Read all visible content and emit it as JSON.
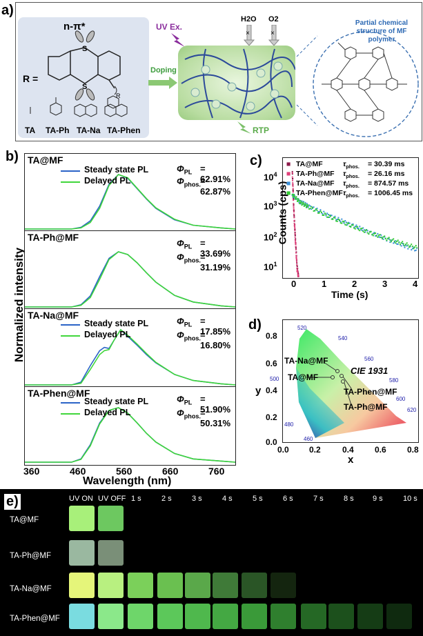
{
  "panel_a": {
    "label": "a)",
    "npi": "n-π*",
    "r_eq": "R =",
    "substituents": [
      "TA",
      "TA-Ph",
      "TA-Na",
      "TA-Phen"
    ],
    "doping": "Doping",
    "uv_ex": "UV Ex.",
    "h2o": "H2O",
    "o2": "O2",
    "rtp": "RTP",
    "mf_title_1": "Partial chemical",
    "mf_title_2": "structure of MF polymer",
    "r_label": "R"
  },
  "panel_b": {
    "label": "b)",
    "ylabel": "Normalized intensity",
    "xlabel": "Wavelength (nm)",
    "xticks": [
      "360",
      "460",
      "560",
      "660",
      "760"
    ],
    "legend_steady": "Steady state PL",
    "legend_delayed": "Delayed PL",
    "phi_pl_symbol": "Φ",
    "phi_pl_sub": "PL",
    "phi_phos_sub": "phos.",
    "samples": [
      {
        "name": "TA@MF",
        "phi_pl": "= 62.91%",
        "phi_phos": "= 62.87%"
      },
      {
        "name": "TA-Ph@MF",
        "phi_pl": "= 33.69%",
        "phi_phos": "= 31.19%"
      },
      {
        "name": "TA-Na@MF",
        "phi_pl": "= 17.85%",
        "phi_phos": "= 16.80%"
      },
      {
        "name": "TA-Phen@MF",
        "phi_pl": "= 51.90%",
        "phi_phos": "= 50.31%"
      }
    ]
  },
  "panel_c": {
    "label": "c)",
    "ylabel": "Counts (cps)",
    "xlabel": "Time (s)",
    "xticks": [
      "0",
      "1",
      "2",
      "3",
      "4"
    ],
    "yticks": [
      "10",
      "10",
      "10",
      "10"
    ],
    "ytick_exps": [
      "4",
      "3",
      "2",
      "1"
    ],
    "tau_symbol": "τ",
    "tau_sub": "phos.",
    "legend": [
      {
        "name": "TA@MF",
        "value": "= 30.39 ms",
        "color": "#8b1a4a"
      },
      {
        "name": "TA-Ph@MF",
        "value": "= 26.16 ms",
        "color": "#e0407a"
      },
      {
        "name": "TA-Na@MF",
        "value": "= 874.57 ms",
        "color": "#3a8fd8"
      },
      {
        "name": "TA-Phen@MF",
        "value": "= 1006.45 ms",
        "color": "#33cc33"
      }
    ]
  },
  "panel_d": {
    "label": "d)",
    "title": "CIE 1931",
    "xlabel": "x",
    "ylabel": "y",
    "xticks": [
      "0.0",
      "0.2",
      "0.4",
      "0.6",
      "0.8"
    ],
    "yticks": [
      "0.0",
      "0.2",
      "0.4",
      "0.6",
      "0.8"
    ],
    "wavelengths": [
      "460",
      "480",
      "500",
      "520",
      "540",
      "560",
      "580",
      "600",
      "620"
    ],
    "points": [
      "TA-Na@MF",
      "TA@MF",
      "TA-Phen@MF",
      "TA-Ph@MF"
    ]
  },
  "panel_e": {
    "label": "e)",
    "headers": [
      "UV ON",
      "UV OFF",
      "1 s",
      "2 s",
      "3 s",
      "4 s",
      "5 s",
      "6 s",
      "7 s",
      "8 s",
      "9 s",
      "10 s"
    ],
    "rows": [
      "TA@MF",
      "TA-Ph@MF",
      "TA-Na@MF",
      "TA-Phen@MF"
    ]
  },
  "chart_data": [
    {
      "type": "line",
      "title": "",
      "xlabel": "Wavelength (nm)",
      "ylabel": "Normalized intensity",
      "xlim": [
        340,
        790
      ],
      "series_by_panel": [
        {
          "name": "TA@MF",
          "x": [
            440,
            460,
            480,
            500,
            520,
            540,
            560,
            580,
            600,
            620,
            660,
            700,
            760
          ],
          "steady": [
            0,
            0.03,
            0.15,
            0.42,
            0.82,
            1.0,
            0.93,
            0.74,
            0.55,
            0.38,
            0.17,
            0.07,
            0.02
          ],
          "delayed": [
            0,
            0.02,
            0.12,
            0.38,
            0.8,
            1.0,
            0.94,
            0.75,
            0.56,
            0.39,
            0.18,
            0.07,
            0.02
          ]
        },
        {
          "name": "TA-Ph@MF",
          "x": [
            440,
            460,
            480,
            500,
            520,
            540,
            560,
            580,
            600,
            620,
            660,
            700,
            760
          ],
          "steady": [
            0,
            0.04,
            0.2,
            0.55,
            0.88,
            1.0,
            0.95,
            0.8,
            0.62,
            0.45,
            0.21,
            0.09,
            0.02
          ],
          "delayed": [
            0,
            0.03,
            0.17,
            0.5,
            0.86,
            1.0,
            0.95,
            0.8,
            0.62,
            0.45,
            0.21,
            0.09,
            0.02
          ]
        },
        {
          "name": "TA-Na@MF",
          "x": [
            440,
            460,
            480,
            500,
            510,
            520,
            530,
            545,
            560,
            580,
            600,
            620,
            660,
            700,
            760
          ],
          "steady": [
            0,
            0.05,
            0.35,
            0.62,
            0.68,
            0.66,
            0.8,
            1.0,
            0.88,
            0.72,
            0.55,
            0.4,
            0.19,
            0.08,
            0.02
          ],
          "delayed": [
            0,
            0.03,
            0.28,
            0.55,
            0.62,
            0.64,
            0.8,
            1.0,
            0.9,
            0.74,
            0.57,
            0.41,
            0.19,
            0.08,
            0.02
          ]
        },
        {
          "name": "TA-Phen@MF",
          "x": [
            440,
            460,
            480,
            500,
            520,
            540,
            560,
            580,
            600,
            620,
            660,
            700,
            760
          ],
          "steady": [
            0,
            0.06,
            0.32,
            0.72,
            0.95,
            1.0,
            0.9,
            0.72,
            0.53,
            0.37,
            0.16,
            0.06,
            0.02
          ],
          "delayed": [
            0,
            0.05,
            0.3,
            0.7,
            0.95,
            1.0,
            0.9,
            0.72,
            0.53,
            0.37,
            0.16,
            0.06,
            0.02
          ]
        }
      ]
    },
    {
      "type": "scatter",
      "title": "",
      "xlabel": "Time (s)",
      "ylabel": "Counts (cps)",
      "xlim": [
        -0.3,
        4
      ],
      "ylim": [
        2,
        30000
      ],
      "yscale": "log",
      "series": [
        {
          "name": "TA@MF",
          "x": [
            0,
            0.05,
            0.1,
            0.15,
            0.2
          ],
          "y": [
            10000,
            400,
            40,
            5,
            2
          ]
        },
        {
          "name": "TA-Ph@MF",
          "x": [
            0,
            0.05,
            0.1,
            0.15,
            0.2
          ],
          "y": [
            9000,
            350,
            35,
            4,
            2
          ]
        },
        {
          "name": "TA-Na@MF",
          "x": [
            0,
            0.25,
            0.5,
            1,
            1.5,
            2,
            2.5,
            3,
            3.5,
            4
          ],
          "y": [
            1500,
            900,
            650,
            360,
            210,
            125,
            75,
            45,
            28,
            18
          ]
        },
        {
          "name": "TA-Phen@MF",
          "x": [
            0,
            0.25,
            0.5,
            1,
            1.5,
            2,
            2.5,
            3,
            3.5,
            4
          ],
          "y": [
            1600,
            850,
            600,
            330,
            190,
            115,
            72,
            47,
            32,
            22
          ]
        }
      ]
    },
    {
      "type": "scatter",
      "title": "CIE 1931",
      "xlabel": "x",
      "ylabel": "y",
      "xlim": [
        0,
        0.8
      ],
      "ylim": [
        0,
        0.9
      ],
      "series": [
        {
          "name": "TA-Na@MF",
          "x": [
            0.34
          ],
          "y": [
            0.55
          ]
        },
        {
          "name": "TA@MF",
          "x": [
            0.33
          ],
          "y": [
            0.52
          ]
        },
        {
          "name": "TA-Phen@MF",
          "x": [
            0.35
          ],
          "y": [
            0.53
          ]
        },
        {
          "name": "TA-Ph@MF",
          "x": [
            0.36
          ],
          "y": [
            0.5
          ]
        }
      ]
    }
  ]
}
